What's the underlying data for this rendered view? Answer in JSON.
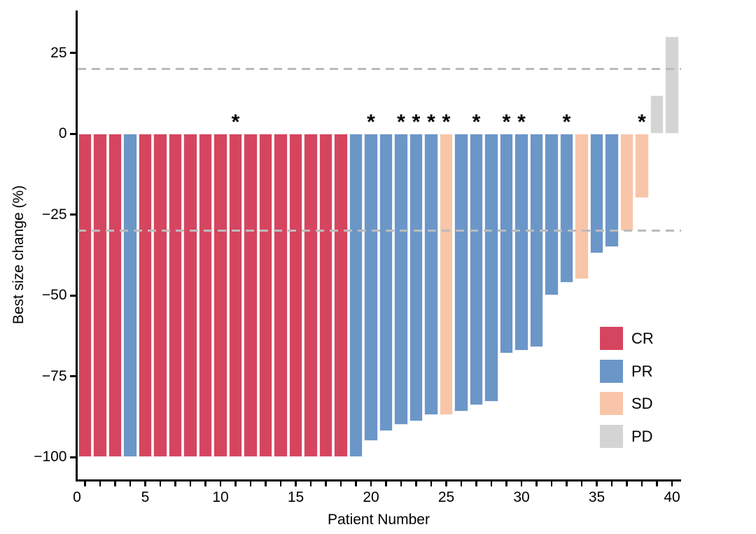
{
  "chart_data": {
    "type": "bar",
    "variant": "waterfall",
    "title": "",
    "xlabel": "Patient Number",
    "ylabel": "Best size change (%)",
    "x_tick_labels": [
      0,
      5,
      10,
      15,
      20,
      25,
      30,
      35,
      40
    ],
    "y_tick_labels": [
      {
        "value": 25,
        "text": "25"
      },
      {
        "value": 0,
        "text": "0"
      },
      {
        "value": -25,
        "text": "−25"
      },
      {
        "value": -50,
        "text": "−50"
      },
      {
        "value": -75,
        "text": "−75"
      },
      {
        "value": -100,
        "text": "−100"
      }
    ],
    "ylim": [
      -107,
      38
    ],
    "xlim": [
      0.45,
      40.6
    ],
    "grid": false,
    "reference_lines": [
      {
        "name": "upper",
        "value": 20
      },
      {
        "name": "lower",
        "value": -30
      }
    ],
    "annotation_symbol": "*",
    "annotated_patients": [
      11,
      20,
      22,
      23,
      24,
      25,
      27,
      29,
      30,
      33,
      38
    ],
    "legend": {
      "position": "right-lower",
      "entries": [
        {
          "label": "CR",
          "color": "#D6455F"
        },
        {
          "label": "PR",
          "color": "#6B96C8"
        },
        {
          "label": "SD",
          "color": "#F8C5A9"
        },
        {
          "label": "PD",
          "color": "#D4D4D4"
        }
      ]
    },
    "colors": {
      "CR": "#D6455F",
      "PR": "#6B96C8",
      "SD": "#F8C5A9",
      "PD": "#D4D4D4",
      "reference_line": "#BBBBBB",
      "axis": "#000000"
    },
    "patients": [
      {
        "n": 1,
        "value": -100,
        "response": "CR"
      },
      {
        "n": 2,
        "value": -100,
        "response": "CR"
      },
      {
        "n": 3,
        "value": -100,
        "response": "CR"
      },
      {
        "n": 4,
        "value": -100,
        "response": "PR"
      },
      {
        "n": 5,
        "value": -100,
        "response": "CR"
      },
      {
        "n": 6,
        "value": -100,
        "response": "CR"
      },
      {
        "n": 7,
        "value": -100,
        "response": "CR"
      },
      {
        "n": 8,
        "value": -100,
        "response": "CR"
      },
      {
        "n": 9,
        "value": -100,
        "response": "CR"
      },
      {
        "n": 10,
        "value": -100,
        "response": "CR"
      },
      {
        "n": 11,
        "value": -100,
        "response": "CR"
      },
      {
        "n": 12,
        "value": -100,
        "response": "CR"
      },
      {
        "n": 13,
        "value": -100,
        "response": "CR"
      },
      {
        "n": 14,
        "value": -100,
        "response": "CR"
      },
      {
        "n": 15,
        "value": -100,
        "response": "CR"
      },
      {
        "n": 16,
        "value": -100,
        "response": "CR"
      },
      {
        "n": 17,
        "value": -100,
        "response": "CR"
      },
      {
        "n": 18,
        "value": -100,
        "response": "CR"
      },
      {
        "n": 19,
        "value": -100,
        "response": "PR"
      },
      {
        "n": 20,
        "value": -95,
        "response": "PR"
      },
      {
        "n": 21,
        "value": -92,
        "response": "PR"
      },
      {
        "n": 22,
        "value": -90,
        "response": "PR"
      },
      {
        "n": 23,
        "value": -89,
        "response": "PR"
      },
      {
        "n": 24,
        "value": -87,
        "response": "PR"
      },
      {
        "n": 25,
        "value": -87,
        "response": "SD"
      },
      {
        "n": 26,
        "value": -86,
        "response": "PR"
      },
      {
        "n": 27,
        "value": -84,
        "response": "PR"
      },
      {
        "n": 28,
        "value": -83,
        "response": "PR"
      },
      {
        "n": 29,
        "value": -68,
        "response": "PR"
      },
      {
        "n": 30,
        "value": -67,
        "response": "PR"
      },
      {
        "n": 31,
        "value": -66,
        "response": "PR"
      },
      {
        "n": 32,
        "value": -50,
        "response": "PR"
      },
      {
        "n": 33,
        "value": -46,
        "response": "PR"
      },
      {
        "n": 34,
        "value": -45,
        "response": "SD"
      },
      {
        "n": 35,
        "value": -37,
        "response": "PR"
      },
      {
        "n": 36,
        "value": -35,
        "response": "PR"
      },
      {
        "n": 37,
        "value": -30,
        "response": "SD"
      },
      {
        "n": 38,
        "value": -20,
        "response": "SD"
      },
      {
        "n": 39,
        "value": 12,
        "response": "PD"
      },
      {
        "n": 40,
        "value": 30,
        "response": "PD"
      }
    ]
  }
}
